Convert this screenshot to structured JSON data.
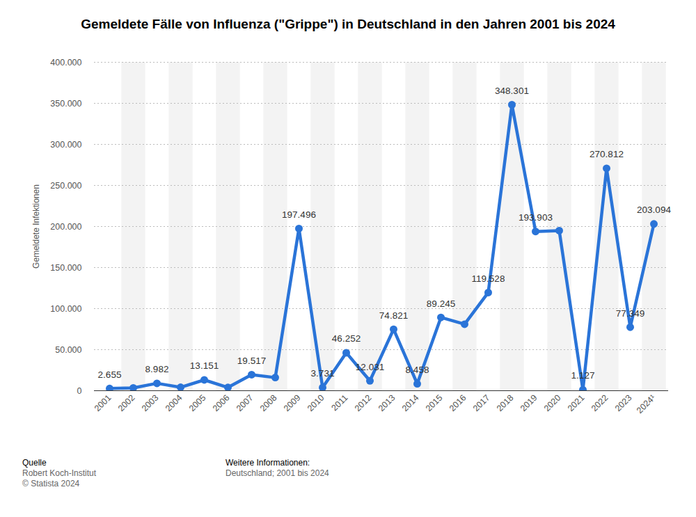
{
  "chart_data": {
    "type": "line",
    "title": "Gemeldete Fälle von Influenza (\"Grippe\") in Deutschland in den Jahren 2001 bis 2024",
    "y_label": "Gemeldete Infektionen",
    "categories": [
      "2001",
      "2002",
      "2003",
      "2004",
      "2005",
      "2006",
      "2007",
      "2008",
      "2009",
      "2010",
      "2011",
      "2012",
      "2013",
      "2014",
      "2015",
      "2016",
      "2017",
      "2018",
      "2019",
      "2020",
      "2021",
      "2022",
      "2023",
      "2024¹"
    ],
    "values": [
      2655,
      3400,
      8982,
      4200,
      13151,
      4000,
      19517,
      16000,
      197496,
      3731,
      46252,
      12031,
      74821,
      8458,
      89245,
      81000,
      119528,
      348301,
      193903,
      195000,
      1127,
      270812,
      77349,
      203094
    ],
    "value_labels": [
      "2.655",
      null,
      "8.982",
      null,
      "13.151",
      null,
      "19.517",
      null,
      "197.496",
      "3.731",
      "46.252",
      "12.031",
      "74.821",
      "8.458",
      "89.245",
      null,
      "119.528",
      "348.301",
      "193.903",
      null,
      "1.127",
      "270.812",
      "77.349",
      "203.094"
    ],
    "data_labels": true,
    "color": "#2a74d8",
    "marker": "circle",
    "ylim": [
      0,
      400000
    ],
    "yticks": [
      0,
      {
        "value": 50000,
        "label": "50.000"
      },
      {
        "value": 100000,
        "label": "100.000"
      },
      {
        "value": 150000,
        "label": "150.000"
      },
      {
        "value": 200000,
        "label": "200.000"
      },
      {
        "value": 250000,
        "label": "250.000"
      },
      {
        "value": 300000,
        "label": "300.000"
      },
      {
        "value": 350000,
        "label": "350.000"
      },
      {
        "value": 400000,
        "label": "400.000"
      }
    ],
    "grid": true,
    "footer": {
      "source_heading": "Quelle",
      "source_lines": [
        "Robert Koch-Institut",
        "© Statista 2024"
      ],
      "info_heading": "Weitere Informationen:",
      "info_lines": [
        "Deutschland; 2001 bis 2024"
      ]
    }
  }
}
